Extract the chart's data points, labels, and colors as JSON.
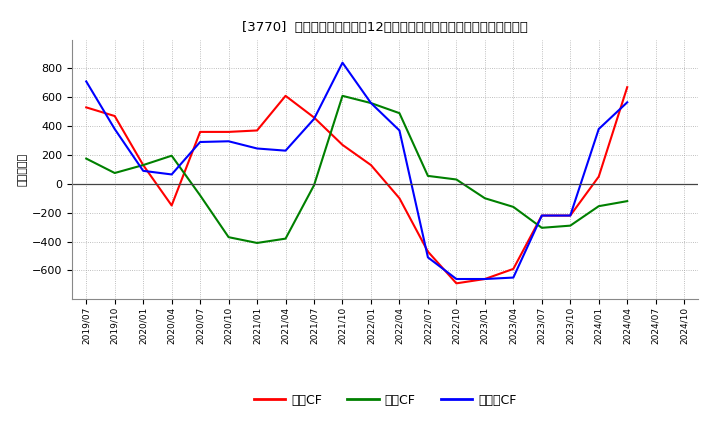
{
  "title": "[3770]  キャッシュフローの12か月移動合計の対前年同期増減額の推移",
  "ylabel": "（百万円）",
  "background_color": "#ffffff",
  "plot_background": "#ffffff",
  "grid_color": "#aaaaaa",
  "x_labels": [
    "2019/07",
    "2019/10",
    "2020/01",
    "2020/04",
    "2020/07",
    "2020/10",
    "2021/01",
    "2021/04",
    "2021/07",
    "2021/10",
    "2022/01",
    "2022/04",
    "2022/07",
    "2022/10",
    "2023/01",
    "2023/04",
    "2023/07",
    "2023/10",
    "2024/01",
    "2024/04",
    "2024/07",
    "2024/10"
  ],
  "series": {
    "営業CF": {
      "color": "#ff0000",
      "data": [
        530,
        470,
        130,
        -150,
        360,
        360,
        370,
        610,
        460,
        270,
        130,
        -100,
        -470,
        -690,
        -660,
        -590,
        -220,
        -220,
        50,
        670,
        null,
        null
      ]
    },
    "投資CF": {
      "color": "#008000",
      "data": [
        175,
        75,
        130,
        195,
        -80,
        -370,
        -410,
        -380,
        -10,
        610,
        560,
        490,
        55,
        30,
        -100,
        -160,
        -305,
        -290,
        -155,
        -120,
        null,
        null
      ]
    },
    "フリーCF": {
      "color": "#0000ff",
      "data": [
        710,
        380,
        90,
        65,
        290,
        295,
        245,
        230,
        450,
        840,
        560,
        370,
        -510,
        -660,
        -660,
        -650,
        -220,
        -220,
        380,
        565,
        null,
        null
      ]
    }
  },
  "ylim": [
    -800,
    1000
  ],
  "yticks": [
    -600,
    -400,
    -200,
    0,
    200,
    400,
    600,
    800
  ],
  "legend_labels": [
    "営業CF",
    "投資CF",
    "フリーCF"
  ],
  "legend_colors": [
    "#ff0000",
    "#008000",
    "#0000ff"
  ]
}
